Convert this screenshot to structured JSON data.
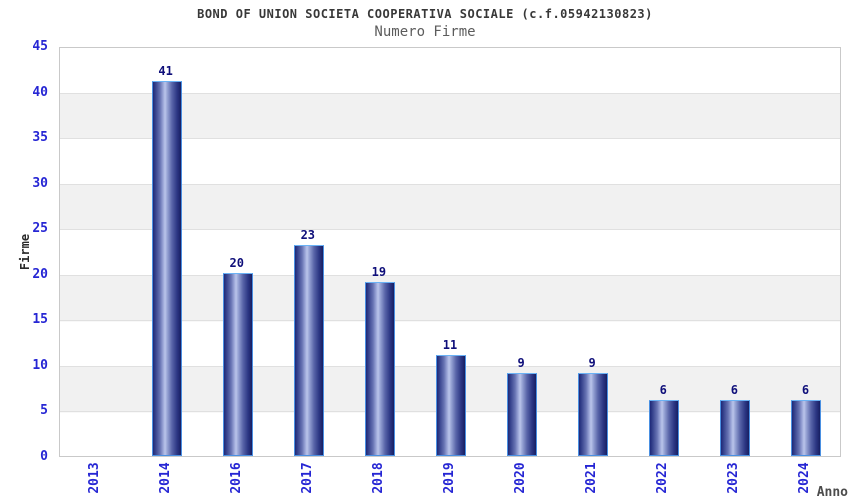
{
  "chart_data": {
    "type": "bar",
    "title": "BOND OF UNION SOCIETA COOPERATIVA SOCIALE (c.f.05942130823)",
    "subtitle": "Numero Firme",
    "xlabel": "Anno",
    "ylabel": "Firme",
    "categories": [
      "2013",
      "2014",
      "2016",
      "2017",
      "2018",
      "2019",
      "2020",
      "2021",
      "2022",
      "2023",
      "2024"
    ],
    "values": [
      0,
      41,
      20,
      23,
      19,
      11,
      9,
      9,
      6,
      6,
      6
    ],
    "yticks": [
      0,
      5,
      10,
      15,
      20,
      25,
      30,
      35,
      40,
      45
    ],
    "ylim": [
      0,
      45
    ],
    "grid": "horizontal-bands-every-5",
    "legend": "none",
    "bar_labels_shown": true,
    "zero_value_bars_hidden": true,
    "colors": {
      "bar_dark": "#1e2878",
      "bar_highlight": "#bac4ea",
      "bar_border": "#4a90e2",
      "tick_label": "#2626d4",
      "value_label": "#0f0f7a",
      "title": "#383838",
      "subtitle": "#5c5c5c",
      "axis_label": "#2a2a2a",
      "band_gray": "#f1f1f1",
      "gridline": "#e0e0e0",
      "plot_border": "#c9c9c9",
      "background": "#ffffff"
    }
  }
}
